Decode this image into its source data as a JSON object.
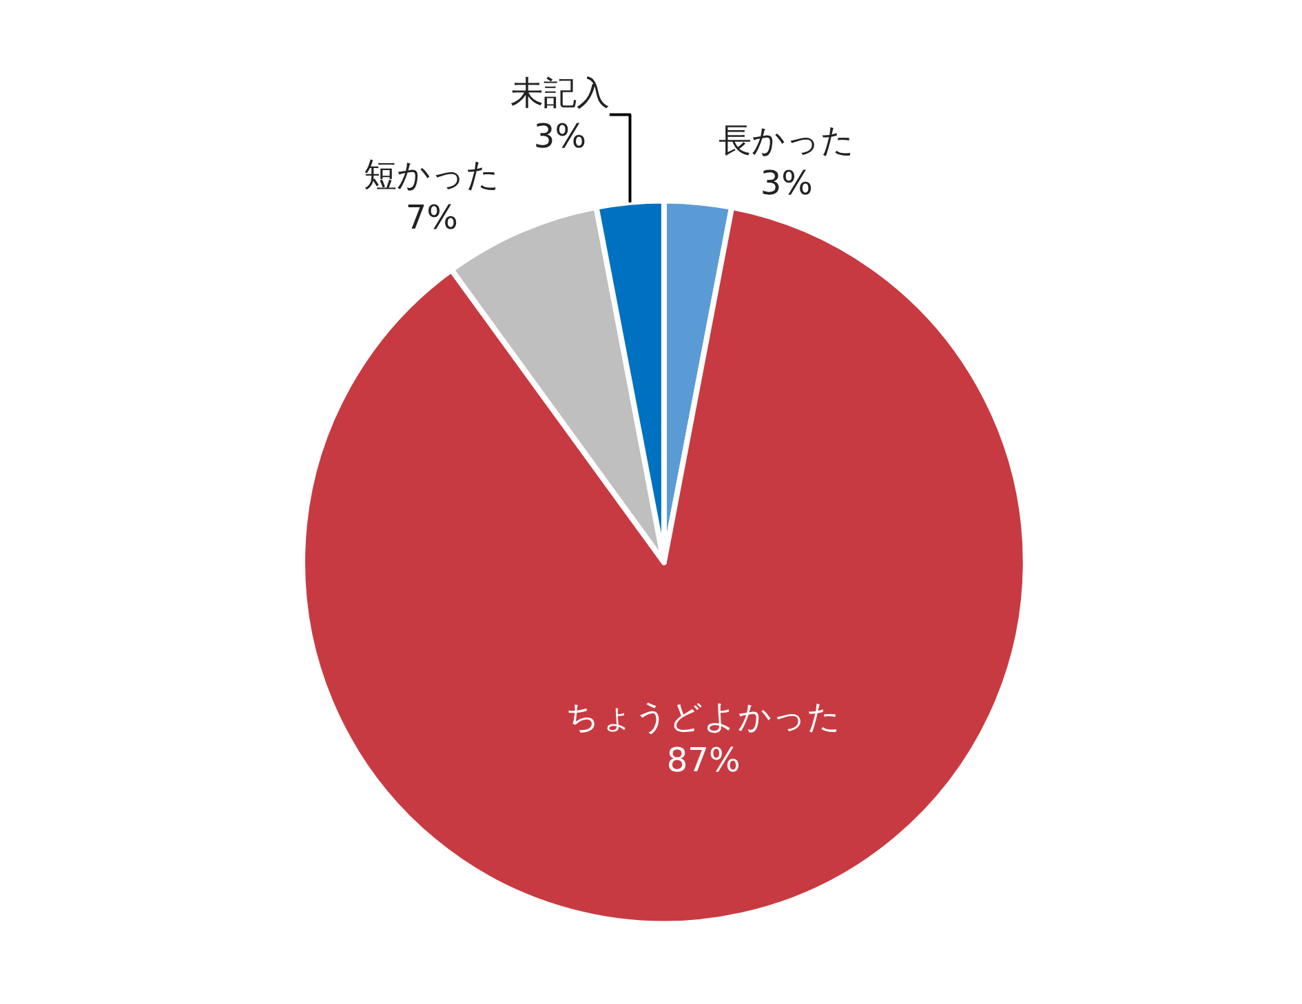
{
  "chart_data": {
    "type": "pie",
    "categories": [
      "長かった",
      "ちょうどよかった",
      "短かった",
      "未記入"
    ],
    "values": [
      3,
      87,
      7,
      3
    ],
    "value_labels": [
      "3%",
      "87%",
      "7%",
      "3%"
    ],
    "colors": [
      "#5b9bd5",
      "#c83a41",
      "#bfbfbf",
      "#0070c0"
    ],
    "legend": false
  }
}
